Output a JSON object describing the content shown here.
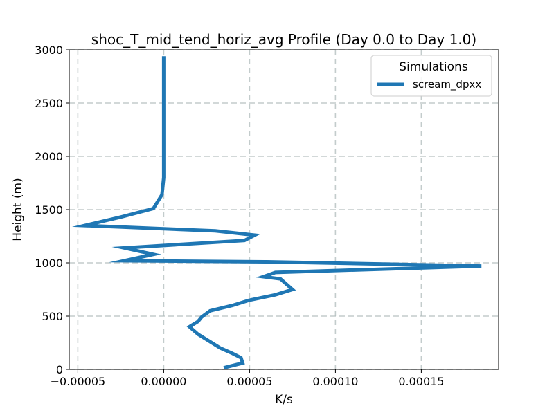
{
  "chart_data": {
    "type": "line",
    "title": "shoc_T_mid_tend_horiz_avg Profile (Day 0.0 to Day 1.0)",
    "xlabel": "K/s",
    "ylabel": "Height (m)",
    "xlim": [
      -5.5e-05,
      0.000195
    ],
    "ylim": [
      0,
      3000
    ],
    "xticks": [
      -5e-05,
      0.0,
      5e-05,
      0.0001,
      0.00015
    ],
    "xtick_labels": [
      "−0.00005",
      "0.00000",
      "0.00005",
      "0.00010",
      "0.00015"
    ],
    "yticks": [
      0,
      500,
      1000,
      1500,
      2000,
      2500,
      3000
    ],
    "ytick_labels": [
      "0",
      "500",
      "1000",
      "1500",
      "2000",
      "2500",
      "3000"
    ],
    "grid": true,
    "legend": {
      "title": "Simulations",
      "placement": "top-right"
    },
    "series": [
      {
        "name": "scream_dpxx",
        "color": "#1f77b4",
        "x": [
          3.5e-05,
          4.6e-05,
          4.5e-05,
          4e-05,
          3.3e-05,
          2.7e-05,
          2e-05,
          1.5e-05,
          2e-05,
          2.2e-05,
          2.7e-05,
          4e-05,
          5e-05,
          6.5e-05,
          7.5e-05,
          6.8e-05,
          5.8e-05,
          6.5e-05,
          0.000185,
          6e-05,
          -2.3e-05,
          -6e-06,
          -2.3e-05,
          4.7e-05,
          5.3e-05,
          3e-05,
          -4.6e-05,
          -2.5e-05,
          -6e-06,
          -1e-06,
          0.0,
          0.0,
          0.0,
          0.0,
          0.0
        ],
        "y": [
          15,
          60,
          110,
          150,
          200,
          260,
          330,
          400,
          450,
          490,
          550,
          600,
          650,
          700,
          750,
          850,
          870,
          910,
          970,
          1010,
          1020,
          1080,
          1140,
          1210,
          1260,
          1300,
          1350,
          1430,
          1510,
          1640,
          1800,
          2000,
          2300,
          2600,
          2940
        ]
      }
    ]
  }
}
